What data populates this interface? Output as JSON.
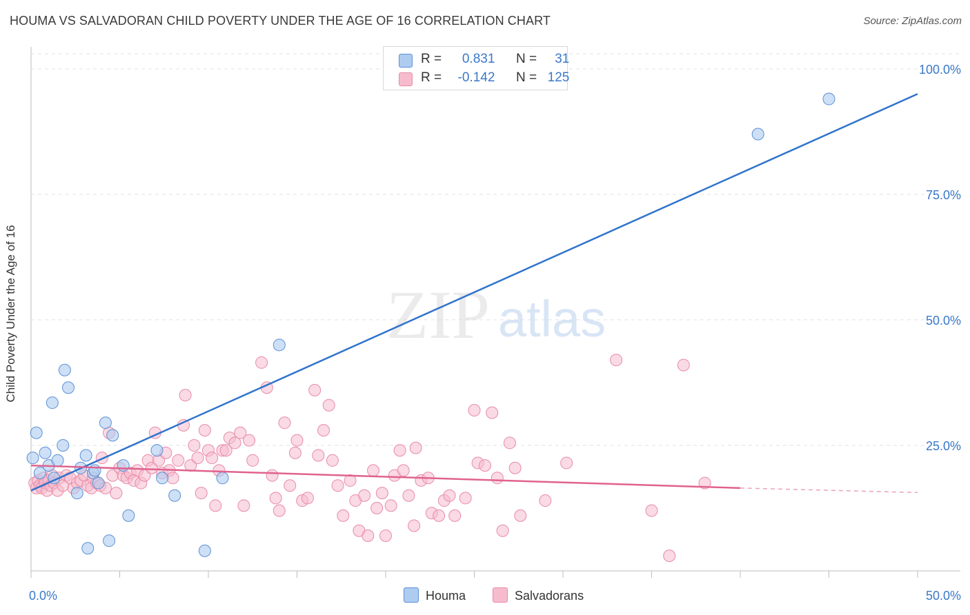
{
  "title": "HOUMA VS SALVADORAN CHILD POVERTY UNDER THE AGE OF 16 CORRELATION CHART",
  "source": "Source: ZipAtlas.com",
  "watermark": {
    "zip": "ZIP",
    "atlas": "atlas"
  },
  "legend": {
    "houma": {
      "r_label": "R =",
      "r_value": "0.831",
      "n_label": "N =",
      "n_value": "31"
    },
    "salvadoran": {
      "r_label": "R =",
      "r_value": "-0.142",
      "n_label": "N =",
      "n_value": "125"
    }
  },
  "bottom_legend": {
    "houma": "Houma",
    "salvadorans": "Salvadorans"
  },
  "colors": {
    "houma_fill": "#aecbf0",
    "houma_stroke": "#5b8fd4",
    "houma_line": "#2f73cc",
    "salv_fill": "#f6bccd",
    "salv_stroke": "#e88aa8",
    "salv_line": "#e0628e",
    "tick_text": "#3a78c8"
  },
  "chart_data": {
    "type": "scatter",
    "title": "HOUMA VS SALVADORAN CHILD POVERTY UNDER THE AGE OF 16 CORRELATION CHART",
    "xlabel": "",
    "ylabel": "Child Poverty Under the Age of 16",
    "xlim": [
      0,
      50
    ],
    "ylim": [
      0,
      103
    ],
    "x_tick_labels": [
      "0.0%",
      "50.0%"
    ],
    "y_ticks": [
      25,
      50,
      75,
      100
    ],
    "y_tick_labels": [
      "25.0%",
      "50.0%",
      "75.0%",
      "100.0%"
    ],
    "grid": true,
    "series": [
      {
        "name": "Houma",
        "points": [
          [
            0.1,
            22.5
          ],
          [
            0.5,
            19.5
          ],
          [
            0.8,
            23.5
          ],
          [
            1.0,
            21.0
          ],
          [
            1.2,
            33.5
          ],
          [
            1.5,
            22.0
          ],
          [
            1.8,
            25.0
          ],
          [
            1.9,
            40.0
          ],
          [
            2.1,
            36.5
          ],
          [
            2.6,
            15.5
          ],
          [
            2.8,
            20.5
          ],
          [
            3.1,
            23.0
          ],
          [
            3.2,
            4.5
          ],
          [
            3.5,
            19.5
          ],
          [
            3.6,
            20.0
          ],
          [
            3.8,
            17.5
          ],
          [
            4.2,
            29.5
          ],
          [
            4.4,
            6.0
          ],
          [
            4.6,
            27.0
          ],
          [
            5.2,
            21.0
          ],
          [
            5.5,
            11.0
          ],
          [
            7.1,
            24.0
          ],
          [
            7.4,
            18.5
          ],
          [
            8.1,
            15.0
          ],
          [
            9.8,
            4.0
          ],
          [
            10.8,
            18.5
          ],
          [
            14.0,
            45.0
          ],
          [
            0.3,
            27.5
          ],
          [
            1.3,
            18.5
          ],
          [
            41.0,
            87.0
          ],
          [
            45.0,
            94.0
          ]
        ],
        "trend": {
          "x": [
            0,
            50
          ],
          "y": [
            16.0,
            95.0
          ]
        }
      },
      {
        "name": "Salvadorans",
        "points": [
          [
            0.2,
            17.5
          ],
          [
            0.3,
            16.5
          ],
          [
            0.4,
            18.0
          ],
          [
            0.5,
            17.0
          ],
          [
            0.6,
            16.5
          ],
          [
            0.7,
            18.5
          ],
          [
            0.8,
            17.5
          ],
          [
            0.9,
            16.0
          ],
          [
            1.0,
            18.0
          ],
          [
            1.1,
            17.0
          ],
          [
            1.2,
            19.0
          ],
          [
            1.3,
            17.5
          ],
          [
            1.5,
            16.0
          ],
          [
            1.6,
            18.5
          ],
          [
            1.8,
            17.0
          ],
          [
            2.0,
            19.0
          ],
          [
            2.2,
            18.5
          ],
          [
            2.4,
            16.5
          ],
          [
            2.6,
            17.5
          ],
          [
            2.8,
            18.0
          ],
          [
            3.0,
            19.0
          ],
          [
            3.2,
            17.0
          ],
          [
            3.4,
            16.5
          ],
          [
            3.5,
            18.5
          ],
          [
            3.7,
            17.5
          ],
          [
            3.9,
            17.0
          ],
          [
            4.0,
            22.5
          ],
          [
            4.2,
            16.5
          ],
          [
            4.4,
            27.5
          ],
          [
            4.6,
            19.0
          ],
          [
            4.8,
            15.5
          ],
          [
            5.0,
            20.5
          ],
          [
            5.2,
            19.0
          ],
          [
            5.4,
            18.5
          ],
          [
            5.6,
            19.5
          ],
          [
            5.8,
            18.0
          ],
          [
            6.0,
            20.0
          ],
          [
            6.2,
            17.5
          ],
          [
            6.4,
            19.0
          ],
          [
            6.6,
            22.0
          ],
          [
            6.8,
            20.5
          ],
          [
            7.0,
            27.5
          ],
          [
            7.2,
            22.0
          ],
          [
            7.4,
            19.5
          ],
          [
            7.6,
            23.5
          ],
          [
            7.8,
            20.0
          ],
          [
            8.0,
            18.5
          ],
          [
            8.3,
            22.0
          ],
          [
            8.6,
            29.0
          ],
          [
            8.7,
            35.0
          ],
          [
            9.0,
            21.0
          ],
          [
            9.2,
            25.0
          ],
          [
            9.4,
            22.5
          ],
          [
            9.6,
            15.5
          ],
          [
            9.8,
            28.0
          ],
          [
            10.0,
            24.0
          ],
          [
            10.2,
            22.5
          ],
          [
            10.4,
            13.0
          ],
          [
            10.6,
            20.0
          ],
          [
            10.8,
            24.0
          ],
          [
            11.0,
            24.0
          ],
          [
            11.2,
            26.5
          ],
          [
            11.5,
            25.5
          ],
          [
            11.8,
            27.5
          ],
          [
            12.0,
            13.0
          ],
          [
            12.3,
            26.0
          ],
          [
            12.5,
            22.0
          ],
          [
            13.0,
            41.5
          ],
          [
            13.3,
            36.5
          ],
          [
            13.6,
            19.0
          ],
          [
            13.8,
            14.5
          ],
          [
            14.0,
            12.0
          ],
          [
            14.3,
            29.5
          ],
          [
            14.6,
            17.0
          ],
          [
            14.9,
            23.5
          ],
          [
            15.0,
            26.0
          ],
          [
            15.3,
            14.0
          ],
          [
            15.6,
            14.5
          ],
          [
            16.0,
            36.0
          ],
          [
            16.2,
            23.0
          ],
          [
            16.5,
            28.0
          ],
          [
            16.8,
            33.0
          ],
          [
            17.0,
            22.0
          ],
          [
            17.3,
            17.0
          ],
          [
            17.6,
            11.0
          ],
          [
            18.0,
            18.0
          ],
          [
            18.3,
            14.0
          ],
          [
            18.5,
            8.0
          ],
          [
            18.8,
            15.0
          ],
          [
            19.0,
            7.0
          ],
          [
            19.3,
            20.0
          ],
          [
            19.5,
            12.5
          ],
          [
            19.8,
            15.5
          ],
          [
            20.0,
            7.0
          ],
          [
            20.3,
            13.0
          ],
          [
            20.5,
            19.0
          ],
          [
            20.8,
            24.0
          ],
          [
            21.0,
            20.0
          ],
          [
            21.3,
            15.0
          ],
          [
            21.6,
            9.0
          ],
          [
            21.7,
            24.5
          ],
          [
            22.0,
            18.0
          ],
          [
            22.4,
            18.5
          ],
          [
            22.6,
            11.5
          ],
          [
            23.0,
            11.0
          ],
          [
            23.3,
            14.0
          ],
          [
            23.6,
            15.0
          ],
          [
            23.9,
            11.0
          ],
          [
            24.5,
            14.5
          ],
          [
            25.0,
            32.0
          ],
          [
            25.2,
            21.5
          ],
          [
            25.6,
            21.0
          ],
          [
            26.0,
            31.5
          ],
          [
            26.3,
            18.5
          ],
          [
            26.6,
            8.0
          ],
          [
            27.0,
            25.5
          ],
          [
            27.3,
            20.5
          ],
          [
            27.6,
            11.0
          ],
          [
            29.0,
            14.0
          ],
          [
            30.2,
            21.5
          ],
          [
            33.0,
            42.0
          ],
          [
            36.8,
            41.0
          ],
          [
            36.0,
            3.0
          ],
          [
            38.0,
            17.5
          ],
          [
            35.0,
            12.0
          ]
        ],
        "trend": {
          "x": [
            0,
            40
          ],
          "y": [
            21.0,
            16.5
          ]
        },
        "trend_dashed_extension": {
          "x": [
            40,
            50
          ],
          "y": [
            16.5,
            15.6
          ]
        }
      }
    ]
  }
}
